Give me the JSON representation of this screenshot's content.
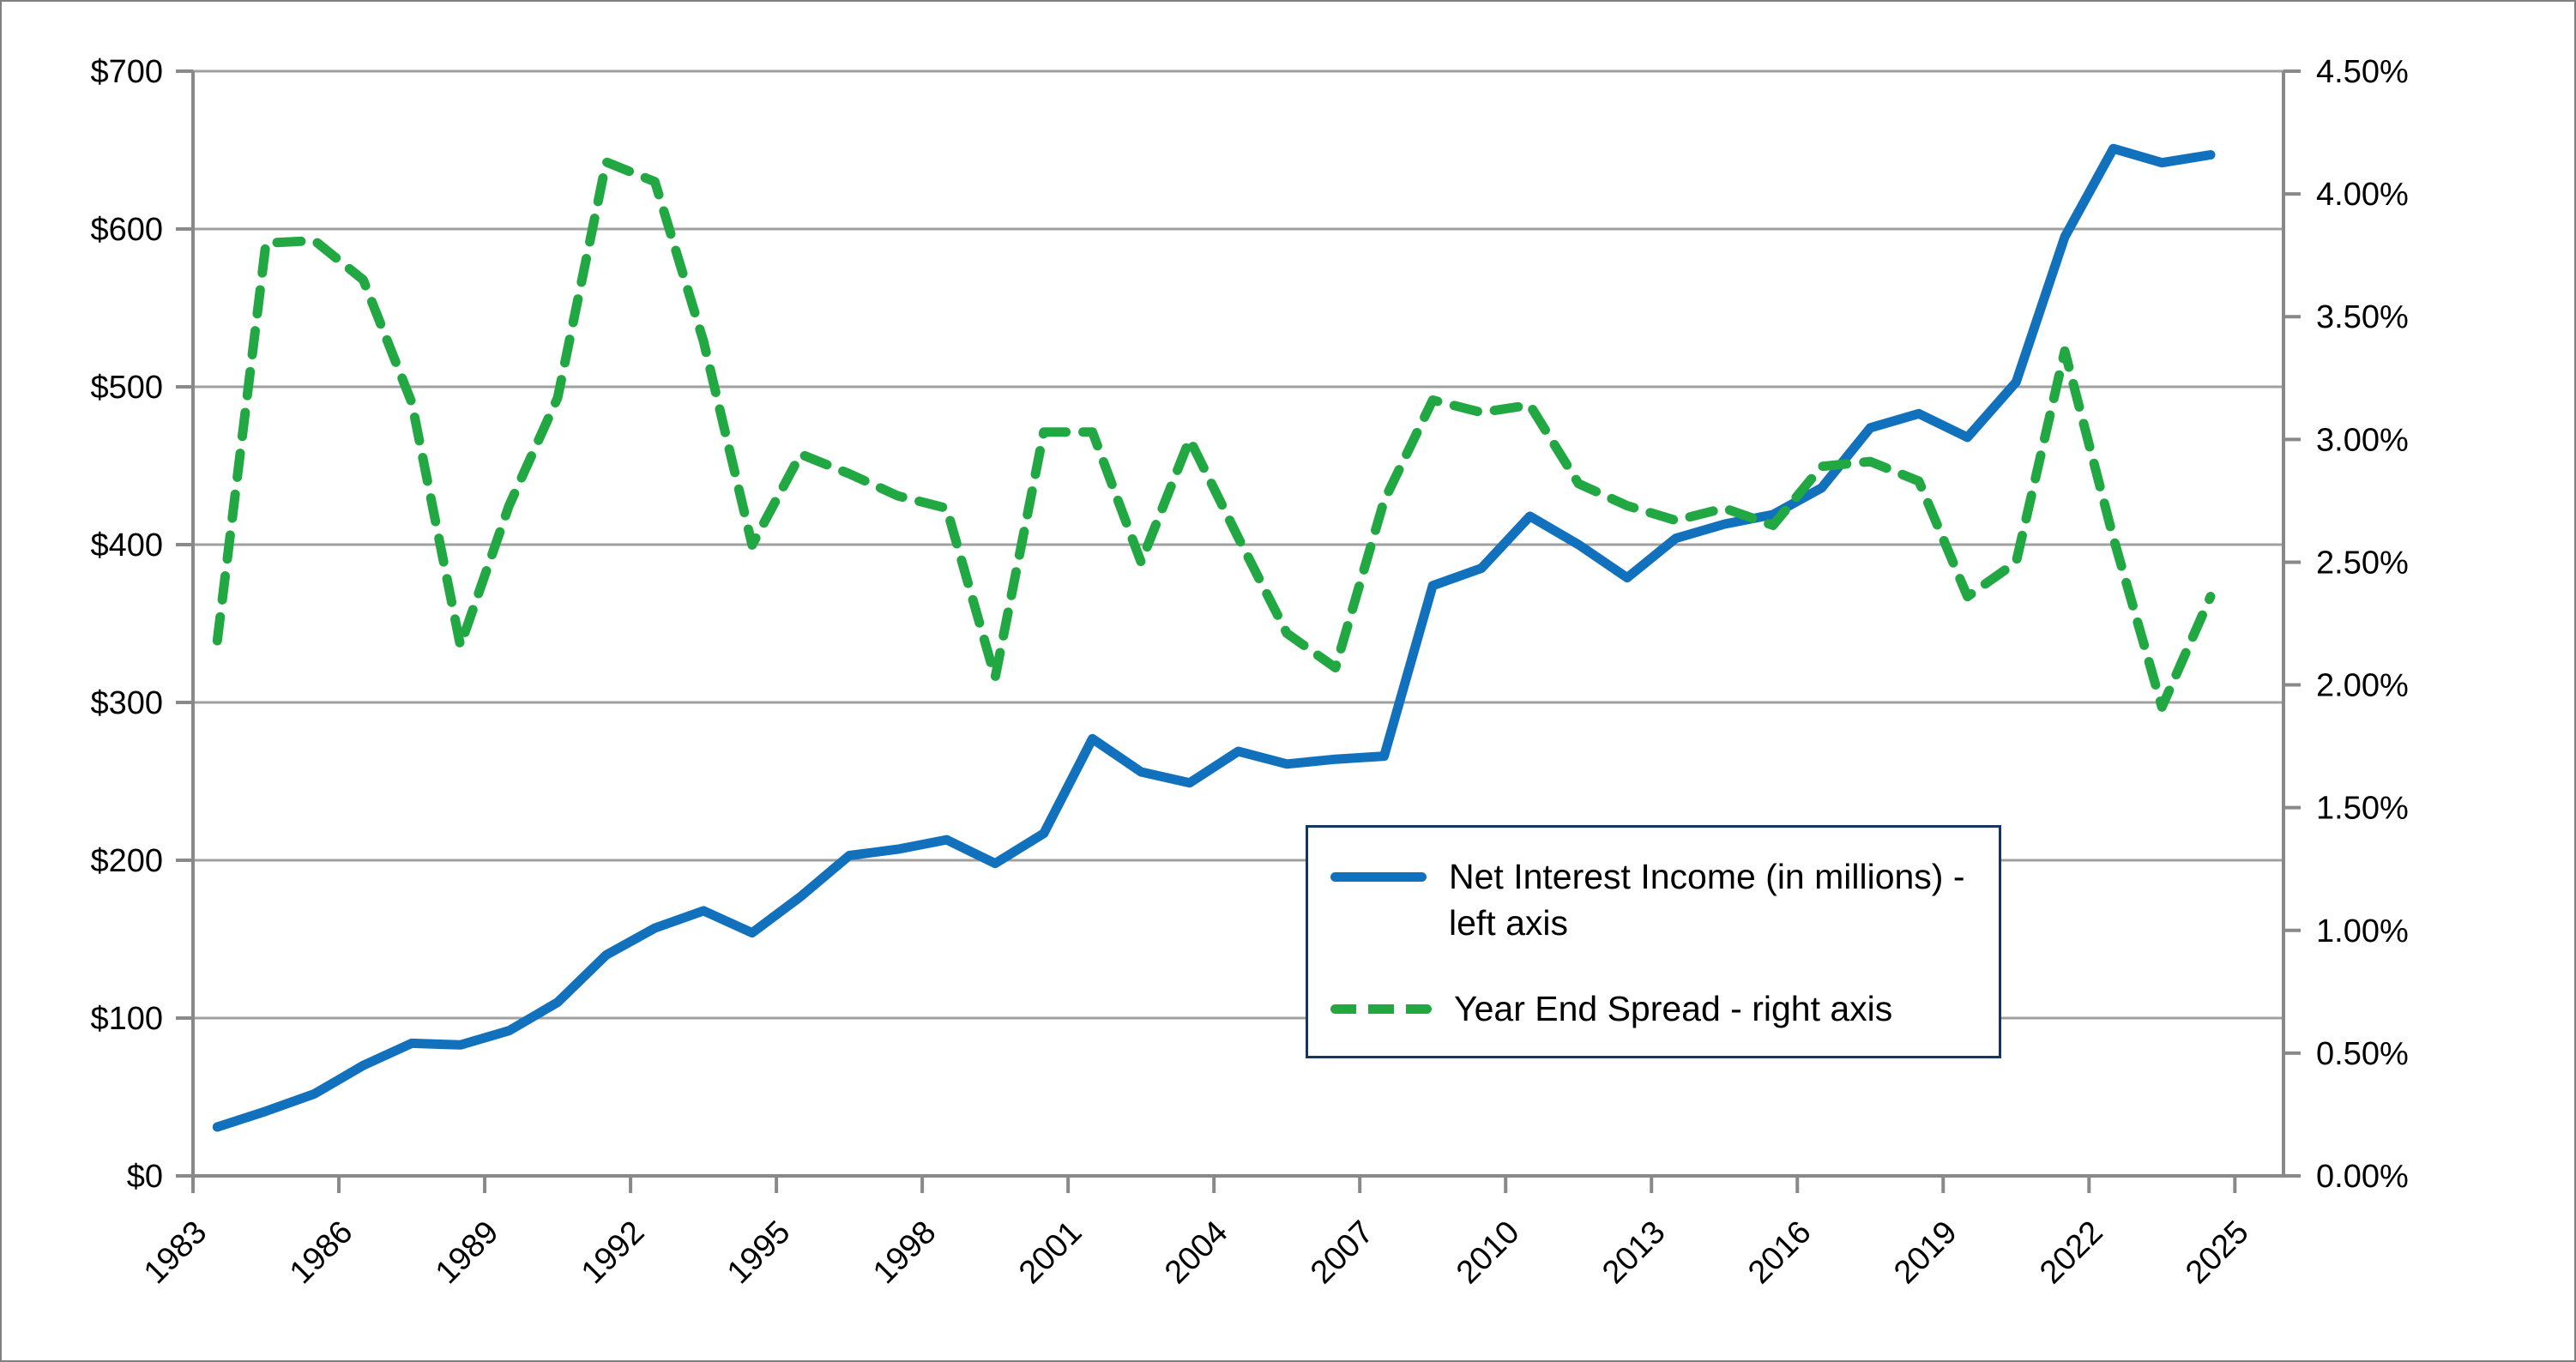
{
  "chart_data": {
    "type": "line",
    "x": [
      1983,
      1984,
      1985,
      1986,
      1987,
      1988,
      1989,
      1990,
      1991,
      1992,
      1993,
      1994,
      1995,
      1996,
      1997,
      1998,
      1999,
      2000,
      2001,
      2002,
      2003,
      2004,
      2005,
      2006,
      2007,
      2008,
      2009,
      2010,
      2011,
      2012,
      2013,
      2014,
      2015,
      2016,
      2017,
      2018,
      2019,
      2020,
      2021,
      2022,
      2023,
      2024
    ],
    "series": [
      {
        "name": "Net Interest Income (in millions) - left axis",
        "axis": "left",
        "style": "solid",
        "color": "#1271BC",
        "values": [
          31,
          41,
          52,
          70,
          84,
          83,
          92,
          110,
          140,
          157,
          168,
          154,
          177,
          203,
          207,
          213,
          198,
          217,
          277,
          256,
          249,
          269,
          261,
          264,
          266,
          374,
          385,
          418,
          400,
          379,
          404,
          413,
          419,
          436,
          474,
          483,
          468,
          503,
          595,
          651,
          642,
          647
        ]
      },
      {
        "name": "Year End Spread - right axis",
        "axis": "right",
        "style": "dashed",
        "color": "#22A842",
        "values": [
          2.18,
          3.8,
          3.81,
          3.65,
          3.15,
          2.16,
          2.73,
          3.17,
          4.13,
          4.05,
          3.4,
          2.57,
          2.94,
          2.86,
          2.77,
          2.72,
          2.03,
          3.03,
          3.03,
          2.5,
          3.0,
          2.6,
          2.21,
          2.07,
          2.75,
          3.16,
          3.11,
          3.14,
          2.82,
          2.73,
          2.67,
          2.72,
          2.65,
          2.89,
          2.91,
          2.83,
          2.36,
          2.5,
          3.36,
          2.6,
          1.91,
          2.36
        ]
      }
    ],
    "left_axis": {
      "min": 0,
      "max": 700,
      "step": 100,
      "tick_labels": [
        "$0",
        "$100",
        "$200",
        "$300",
        "$400",
        "$500",
        "$600",
        "$700"
      ]
    },
    "right_axis": {
      "min": 0,
      "max": 4.5,
      "step": 0.5,
      "tick_labels": [
        "0.00%",
        "0.50%",
        "1.00%",
        "1.50%",
        "2.00%",
        "2.50%",
        "3.00%",
        "3.50%",
        "4.00%",
        "4.50%"
      ]
    },
    "x_axis": {
      "tick_labels": [
        "1983",
        "1986",
        "1989",
        "1992",
        "1995",
        "1998",
        "2001",
        "2004",
        "2007",
        "2010",
        "2013",
        "2016",
        "2019",
        "2022",
        "2025"
      ],
      "label_interval_years": 3,
      "total_category_slots": 43
    },
    "grid": true,
    "legend_position": "inside-center-right"
  },
  "legend": {
    "items": [
      {
        "label": "Net Interest Income (in millions) - left axis"
      },
      {
        "label": "Year End Spread - right axis"
      }
    ]
  },
  "colors": {
    "blue_series": "#1271BC",
    "green_series": "#22A842",
    "gridline": "#A0A0A0",
    "axis_line": "#898989",
    "legend_border": "#17365D",
    "text": "#000000",
    "frame_border": "#808080"
  }
}
